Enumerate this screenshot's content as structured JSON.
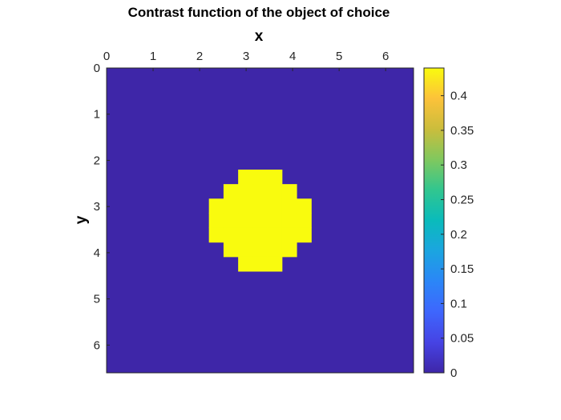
{
  "chart_data": {
    "type": "heatmap",
    "title": "Contrast function of the object of choice",
    "xlabel": "x",
    "ylabel": "y",
    "xlim": [
      0,
      6.6
    ],
    "ylim": [
      0,
      6.6
    ],
    "x_axis_position": "top",
    "y_axis_direction": "reversed",
    "x_ticks": [
      "0",
      "1",
      "2",
      "3",
      "4",
      "5",
      "6"
    ],
    "y_ticks": [
      "0",
      "1",
      "2",
      "3",
      "4",
      "5",
      "6"
    ],
    "background_value": 0,
    "object_value": 0.44,
    "object_center": [
      3.3,
      3.3
    ],
    "object_radius": 1.0,
    "grid_cells": 21,
    "colormap": "parula",
    "colorbar": {
      "range": [
        0,
        0.44
      ],
      "ticks": [
        "0",
        "0.05",
        "0.1",
        "0.15",
        "0.2",
        "0.25",
        "0.3",
        "0.35",
        "0.4"
      ],
      "placement": "right"
    },
    "colors": {
      "background": "#3e26a8",
      "object": "#f9fb0e"
    },
    "grid": false
  }
}
